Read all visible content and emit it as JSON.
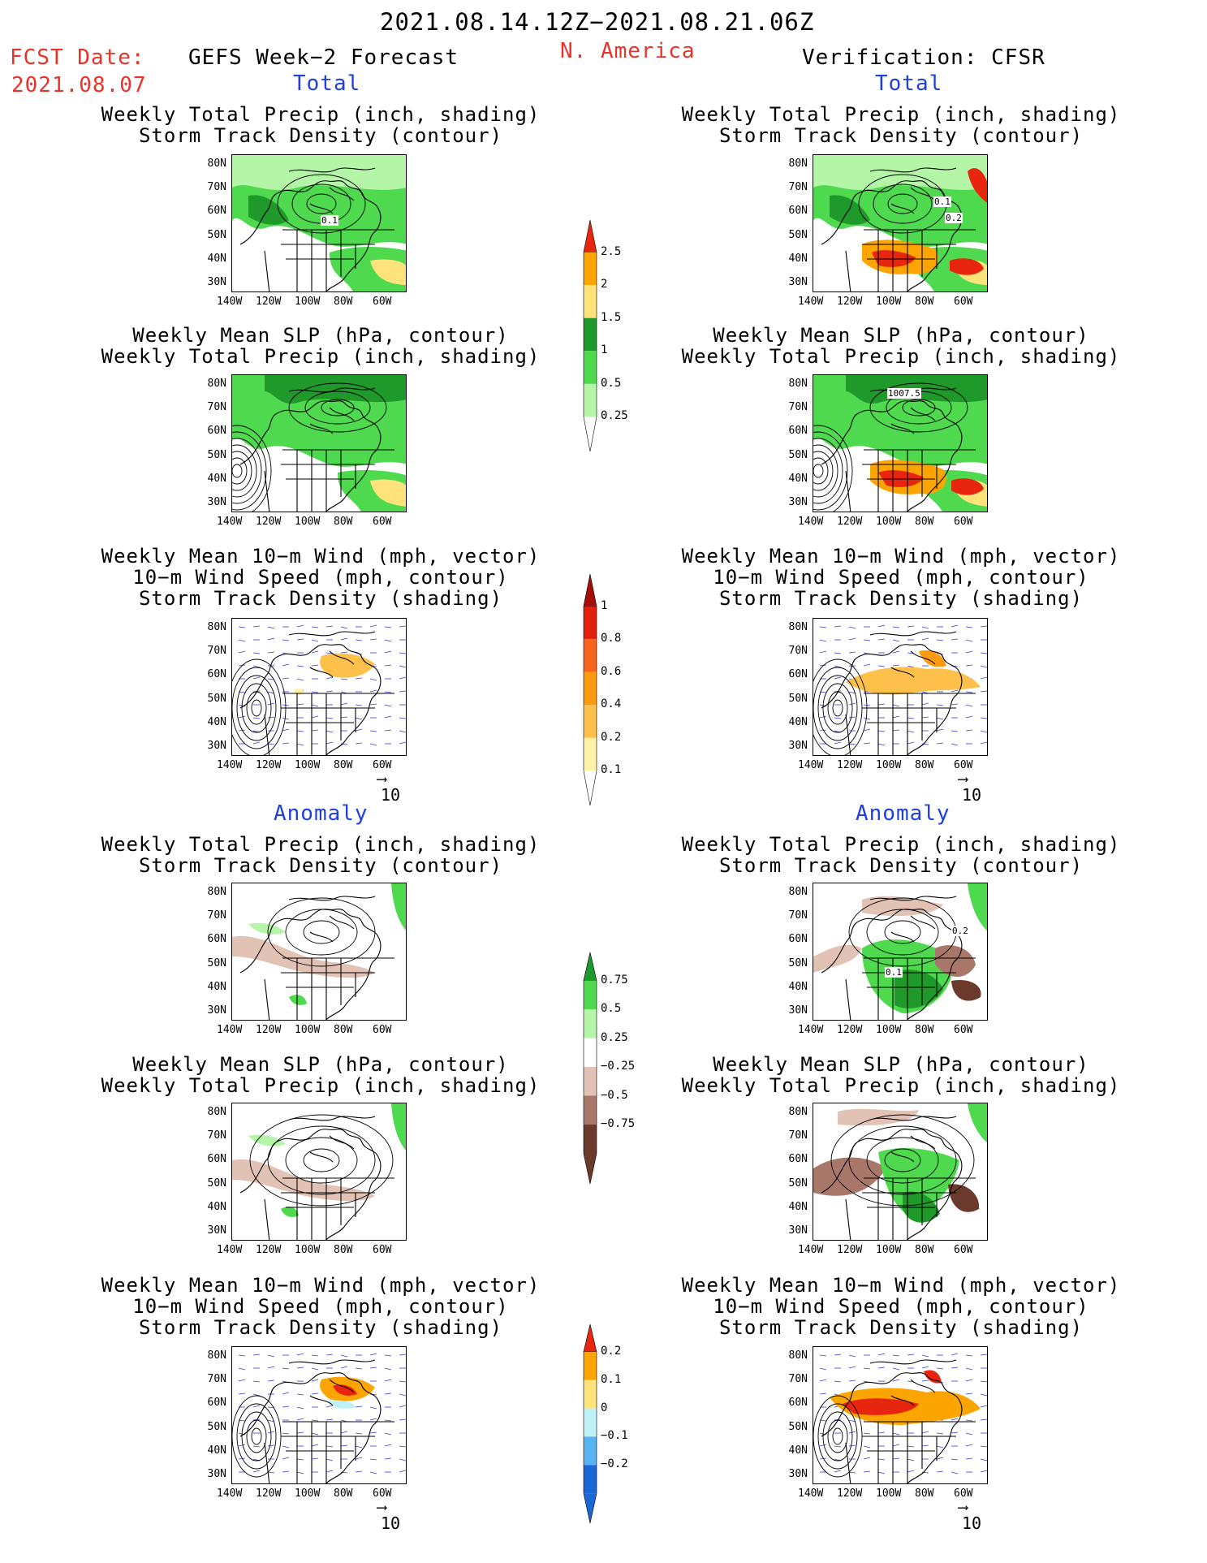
{
  "header": {
    "date_range": "2021.08.14.12Z−2021.08.21.06Z",
    "fcst_date_label": "FCST Date:",
    "fcst_date_value": "2021.08.07",
    "left_title": "GEFS Week−2 Forecast",
    "region": "N. America",
    "right_title": "Verification: CFSR"
  },
  "sections": {
    "total": "Total",
    "anomaly": "Anomaly"
  },
  "panel_titles": {
    "precip_track": [
      "Weekly Total Precip (inch, shading)",
      "Storm Track Density (contour)"
    ],
    "slp_precip": [
      "Weekly Mean SLP (hPa, contour)",
      "Weekly Total Precip (inch, shading)"
    ],
    "wind_track": [
      "Weekly Mean 10−m Wind (mph, vector)",
      "10−m Wind Speed (mph, contour)",
      "Storm Track Density (shading)"
    ]
  },
  "axes": {
    "lat_labels": [
      "80N",
      "70N",
      "60N",
      "50N",
      "40N",
      "30N"
    ],
    "lon_labels": [
      "140W",
      "120W",
      "100W",
      "80W",
      "60W"
    ]
  },
  "vector_reference": "10",
  "contour_labels": {
    "gefs_total_track": "0.1",
    "cfsr_total_track_a": "0.1",
    "cfsr_total_track_b": "0.2",
    "cfsr_total_slp": "1007.5",
    "cfsr_anom_track_a": "0.1",
    "cfsr_anom_track_b": "0.2"
  },
  "colorbars": {
    "precip_total": {
      "labels": [
        "2.5",
        "2",
        "1.5",
        "1",
        "0.5",
        "0.25"
      ],
      "colors": [
        "#e8250e",
        "#fca500",
        "#fde37a",
        "#1f9a2a",
        "#4fd94f",
        "#b5f5a8"
      ]
    },
    "track_total": {
      "labels": [
        "1",
        "0.8",
        "0.6",
        "0.4",
        "0.2",
        "0.1"
      ],
      "colors": [
        "#a50d08",
        "#e2200e",
        "#f7641b",
        "#fd9a12",
        "#fdc04a",
        "#fff1a6"
      ]
    },
    "precip_anom": {
      "labels": [
        "0.75",
        "0.5",
        "0.25",
        "−0.25",
        "−0.5",
        "−0.75"
      ],
      "colors": [
        "#1f9a2a",
        "#4fd94f",
        "#b5f5a8",
        "#ffffff",
        "#e2c2b5",
        "#a9776a",
        "#6b3a2c"
      ]
    },
    "track_anom": {
      "labels": [
        "0.2",
        "0.1",
        "0",
        "−0.1",
        "−0.2"
      ],
      "colors": [
        "#e8250e",
        "#fca500",
        "#fde37a",
        "#bff1f9",
        "#5ab3f1",
        "#1a67d6"
      ]
    }
  }
}
